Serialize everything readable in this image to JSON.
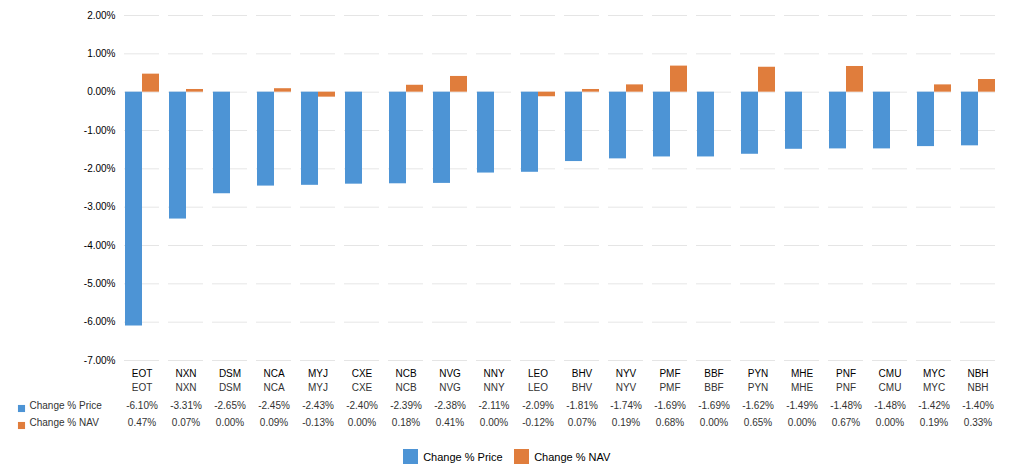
{
  "chart_data": {
    "type": "bar",
    "categories": [
      "EOT",
      "NXN",
      "DSM",
      "NCA",
      "MYJ",
      "CXE",
      "NCB",
      "NVG",
      "NNY",
      "LEO",
      "BHV",
      "NYV",
      "PMF",
      "BBF",
      "PYN",
      "MHE",
      "PNF",
      "CMU",
      "MYC",
      "NBH"
    ],
    "series": [
      {
        "name": "Change % Price",
        "color": "#4d94d5",
        "values": [
          -6.1,
          -3.31,
          -2.65,
          -2.45,
          -2.43,
          -2.4,
          -2.39,
          -2.38,
          -2.11,
          -2.09,
          -1.81,
          -1.74,
          -1.69,
          -1.69,
          -1.62,
          -1.49,
          -1.48,
          -1.48,
          -1.42,
          -1.4
        ],
        "value_labels": [
          "-6.10%",
          "-3.31%",
          "-2.65%",
          "-2.45%",
          "-2.43%",
          "-2.40%",
          "-2.39%",
          "-2.38%",
          "-2.11%",
          "-2.09%",
          "-1.81%",
          "-1.74%",
          "-1.69%",
          "-1.69%",
          "-1.62%",
          "-1.49%",
          "-1.48%",
          "-1.48%",
          "-1.42%",
          "-1.40%"
        ]
      },
      {
        "name": "Change % NAV",
        "color": "#e07d3c",
        "values": [
          0.47,
          0.07,
          0.0,
          0.09,
          -0.13,
          0.0,
          0.18,
          0.41,
          0.0,
          -0.12,
          0.07,
          0.19,
          0.68,
          0.0,
          0.65,
          0.0,
          0.67,
          0.0,
          0.19,
          0.33
        ],
        "value_labels": [
          "0.47%",
          "0.07%",
          "0.00%",
          "0.09%",
          "-0.13%",
          "0.00%",
          "0.18%",
          "0.41%",
          "0.00%",
          "-0.12%",
          "0.07%",
          "0.19%",
          "0.68%",
          "0.00%",
          "0.65%",
          "0.00%",
          "0.67%",
          "0.00%",
          "0.19%",
          "0.33%"
        ]
      }
    ],
    "ylim": [
      -7.0,
      2.0
    ],
    "yticks": [
      {
        "value": 2.0,
        "label": "2.00%"
      },
      {
        "value": 1.0,
        "label": "1.00%"
      },
      {
        "value": 0.0,
        "label": "0.00%"
      },
      {
        "value": -1.0,
        "label": "-1.00%"
      },
      {
        "value": -2.0,
        "label": "-2.00%"
      },
      {
        "value": -3.0,
        "label": "-3.00%"
      },
      {
        "value": -4.0,
        "label": "-4.00%"
      },
      {
        "value": -5.0,
        "label": "-5.00%"
      },
      {
        "value": -6.0,
        "label": "-6.00%"
      },
      {
        "value": -7.0,
        "label": "-7.00%"
      }
    ],
    "grid": true,
    "legend": "bottom"
  }
}
